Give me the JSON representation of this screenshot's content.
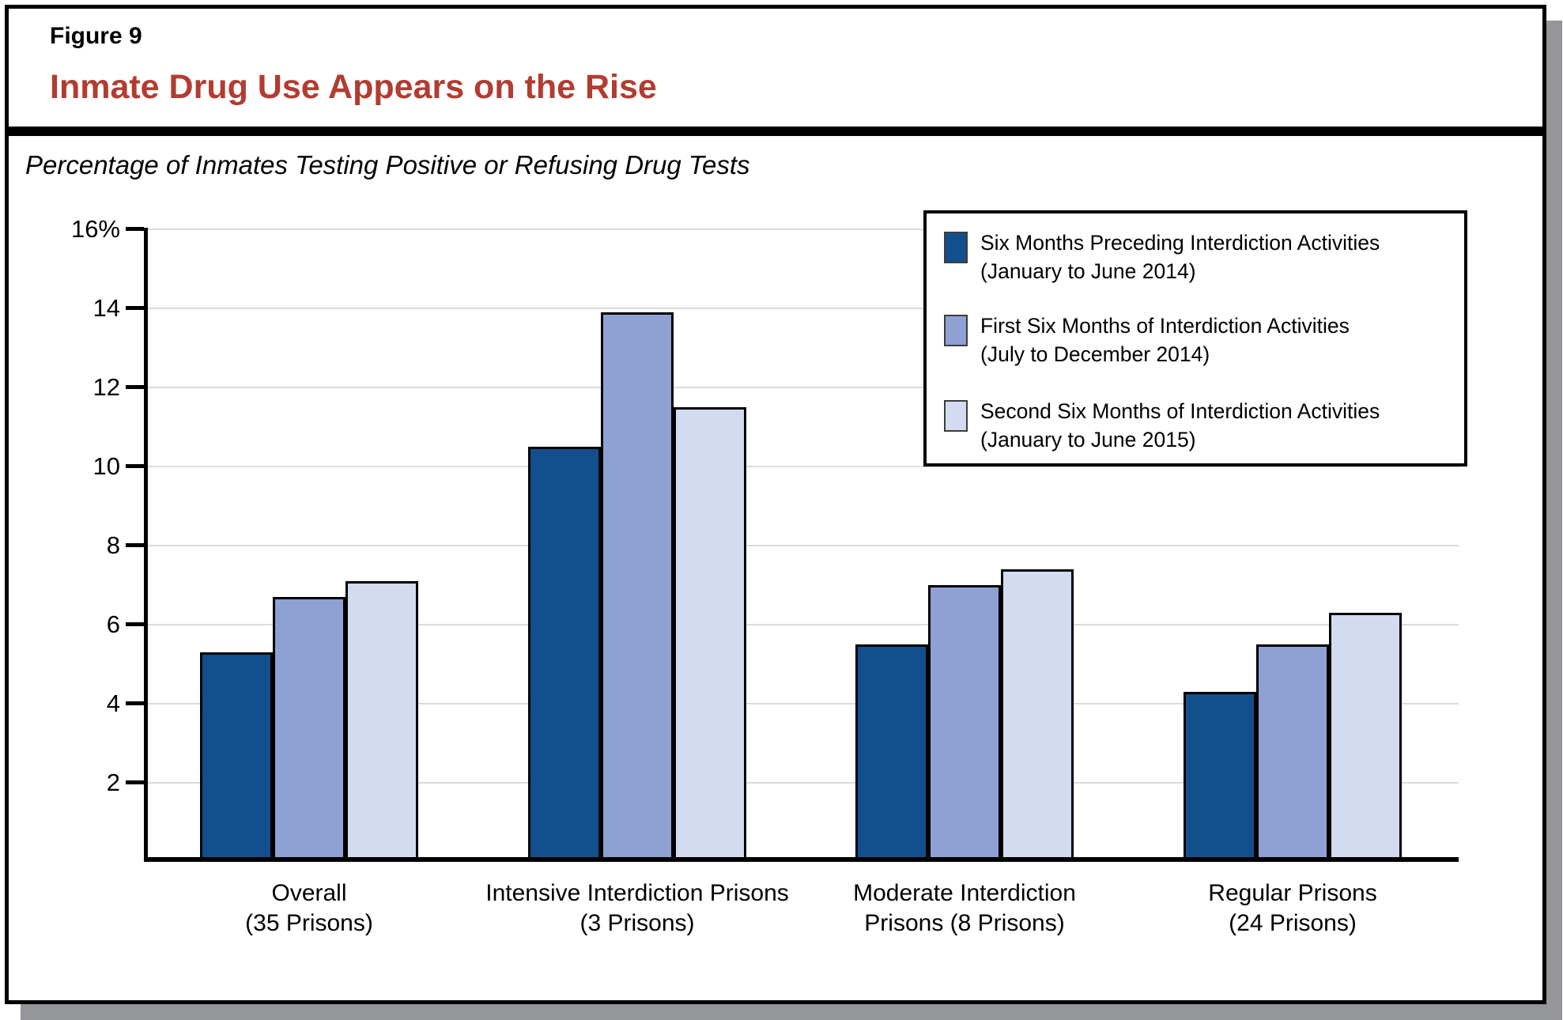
{
  "header": {
    "figure_label": "Figure 9",
    "title": "Inmate Drug Use Appears on the Rise"
  },
  "subtitle": "Percentage of Inmates Testing Positive or Refusing Drug Tests",
  "colors": {
    "title_red": "#B23C30",
    "series_dark_blue": "#124F8D",
    "series_medium_blue": "#8FA0D3",
    "series_light_blue": "#D2DBEF",
    "frame_shadow_gray": "#949699",
    "gridline_gray": "#DBDBDB"
  },
  "legend": {
    "items": [
      {
        "label_line1": "Six Months Preceding Interdiction Activities",
        "label_line2": "(January to June 2014)",
        "color": "#124F8D"
      },
      {
        "label_line1": "First Six Months of Interdiction Activities",
        "label_line2": "(July to December 2014)",
        "color": "#8FA0D3"
      },
      {
        "label_line1": "Second Six Months of Interdiction Activities",
        "label_line2": "(January to June 2015)",
        "color": "#D2DBEF"
      }
    ]
  },
  "chart_data": {
    "type": "bar",
    "title": "Inmate Drug Use Appears on the Rise",
    "subtitle": "Percentage of Inmates Testing Positive or Refusing Drug Tests",
    "categories": [
      "Overall (35 Prisons)",
      "Intensive Interdiction Prisons (3 Prisons)",
      "Moderate Interdiction Prisons (8 Prisons)",
      "Regular Prisons (24 Prisons)"
    ],
    "category_lines": [
      [
        "Overall",
        "(35 Prisons)"
      ],
      [
        "Intensive Interdiction Prisons",
        "(3 Prisons)"
      ],
      [
        "Moderate Interdiction",
        "Prisons (8 Prisons)"
      ],
      [
        "Regular Prisons",
        "(24 Prisons)"
      ]
    ],
    "series": [
      {
        "name": "Six Months Preceding Interdiction Activities (January to June 2014)",
        "color": "#124F8D",
        "values": [
          5.3,
          10.5,
          5.5,
          4.3
        ]
      },
      {
        "name": "First Six Months of Interdiction Activities (July to December 2014)",
        "color": "#8FA0D3",
        "values": [
          6.7,
          13.9,
          7.0,
          5.5
        ]
      },
      {
        "name": "Second Six Months of Interdiction Activities (January to June 2015)",
        "color": "#D2DBEF",
        "values": [
          7.1,
          11.5,
          7.4,
          6.3
        ]
      }
    ],
    "ylim": [
      0,
      16
    ],
    "yticks": [
      2,
      4,
      6,
      8,
      10,
      12,
      14,
      16
    ],
    "ytick_labels": [
      "2",
      "4",
      "6",
      "8",
      "10",
      "12",
      "14",
      "16%"
    ],
    "grid": true,
    "legend_position": "top-right"
  }
}
